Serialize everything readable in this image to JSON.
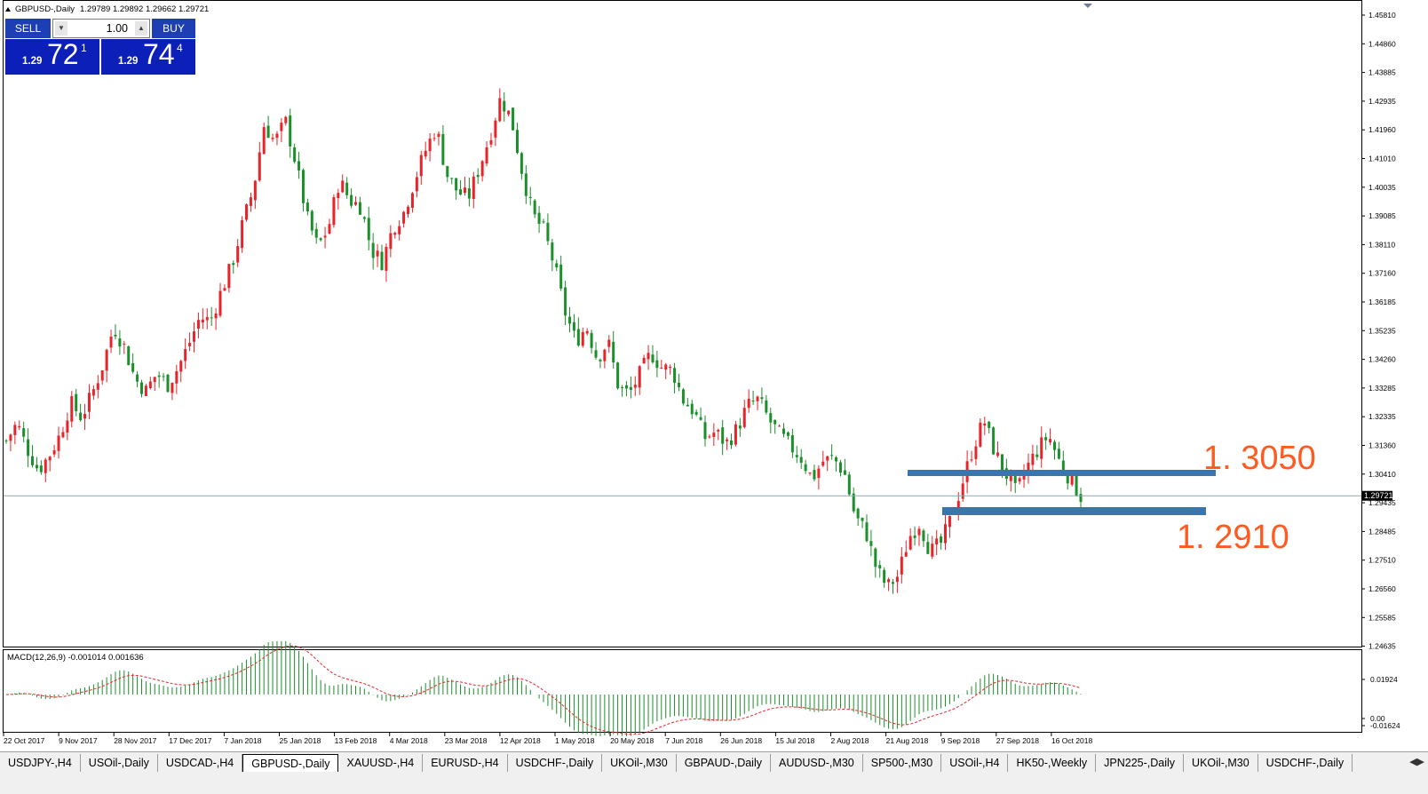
{
  "window": {
    "title": "GBPUSD-,Daily",
    "ohlc": "1.29789 1.29892 1.29662 1.29721"
  },
  "trade_panel": {
    "sell_label": "SELL",
    "buy_label": "BUY",
    "lot": "1.00",
    "sell_prefix": "1.29",
    "sell_big": "72",
    "sell_sup": "1",
    "buy_prefix": "1.29",
    "buy_big": "74",
    "buy_sup": "4"
  },
  "annotations": {
    "upper_level": "1. 3050",
    "lower_level": "1. 2910",
    "color": "#ff5a1f",
    "zone_color": "#3a76ad"
  },
  "current_price_label": "1.29721",
  "colors": {
    "bull": "#e8242a",
    "bear": "#1a8f2a",
    "macd_hist": "#1a8f2a",
    "signal": "#e8242a",
    "level_line": "#8fa7b6"
  },
  "chart_data": [
    {
      "type": "candlestick",
      "title": "GBPUSD-,Daily",
      "y_ticks": [
        "1.45810",
        "1.44860",
        "1.43885",
        "1.42935",
        "1.41960",
        "1.41010",
        "1.40035",
        "1.39085",
        "1.38110",
        "1.37160",
        "1.36185",
        "1.35235",
        "1.34260",
        "1.33285",
        "1.32335",
        "1.31360",
        "1.30410",
        "1.29435",
        "1.28485",
        "1.27510",
        "1.26560",
        "1.25585",
        "1.24635"
      ],
      "x_ticks": [
        "22 Oct 2017",
        "9 Nov 2017",
        "28 Nov 2017",
        "17 Dec 2017",
        "7 Jan 2018",
        "25 Jan 2018",
        "13 Feb 2018",
        "4 Mar 2018",
        "23 Mar 2018",
        "12 Apr 2018",
        "1 May 2018",
        "20 May 2018",
        "7 Jun 2018",
        "26 Jun 2018",
        "15 Jul 2018",
        "2 Aug 2018",
        "21 Aug 2018",
        "9 Sep 2018",
        "27 Sep 2018",
        "16 Oct 2018"
      ],
      "ylim": [
        1.24635,
        1.4613
      ],
      "close_path": [
        1.316,
        1.322,
        1.313,
        1.306,
        1.311,
        1.318,
        1.329,
        1.324,
        1.332,
        1.342,
        1.355,
        1.348,
        1.337,
        1.333,
        1.339,
        1.335,
        1.341,
        1.349,
        1.358,
        1.357,
        1.367,
        1.376,
        1.39,
        1.402,
        1.424,
        1.418,
        1.425,
        1.41,
        1.392,
        1.382,
        1.389,
        1.405,
        1.398,
        1.396,
        1.381,
        1.377,
        1.389,
        1.394,
        1.405,
        1.415,
        1.423,
        1.407,
        1.401,
        1.399,
        1.409,
        1.42,
        1.433,
        1.426,
        1.408,
        1.393,
        1.388,
        1.376,
        1.36,
        1.35,
        1.355,
        1.344,
        1.35,
        1.334,
        1.332,
        1.339,
        1.346,
        1.341,
        1.34,
        1.33,
        1.326,
        1.317,
        1.319,
        1.315,
        1.32,
        1.328,
        1.33,
        1.323,
        1.318,
        1.314,
        1.31,
        1.303,
        1.309,
        1.31,
        1.305,
        1.29,
        1.285,
        1.272,
        1.266,
        1.27,
        1.283,
        1.288,
        1.278,
        1.281,
        1.29,
        1.302,
        1.314,
        1.323,
        1.312,
        1.305,
        1.298,
        1.307,
        1.313,
        1.318,
        1.309,
        1.303,
        1.297
      ],
      "current_price": 1.29721,
      "levels": [
        1.305,
        1.291
      ]
    },
    {
      "type": "bar",
      "title": "MACD(12,26,9) -0.001014 0.001636",
      "y_ticks": [
        "0.01924",
        "0.00",
        "-0.01624"
      ],
      "ylim": [
        -0.018,
        0.022
      ],
      "series": [
        {
          "name": "MACD",
          "kind": "histogram"
        },
        {
          "name": "Signal",
          "kind": "line"
        }
      ]
    }
  ],
  "tabs": [
    "USDJPY-,H4",
    "USOil-,Daily",
    "USDCAD-,H4",
    "GBPUSD-,Daily",
    "XAUUSD-,H4",
    "EURUSD-,H4",
    "USDCHF-,Daily",
    "UKOil-,M30",
    "GBPAUD-,Daily",
    "AUDUSD-,M30",
    "SP500-,M30",
    "USOil-,H4",
    "HK50-,Weekly",
    "JPN225-,Daily",
    "UKOil-,M30",
    "USDCHF-,Daily"
  ],
  "active_tab": 3
}
